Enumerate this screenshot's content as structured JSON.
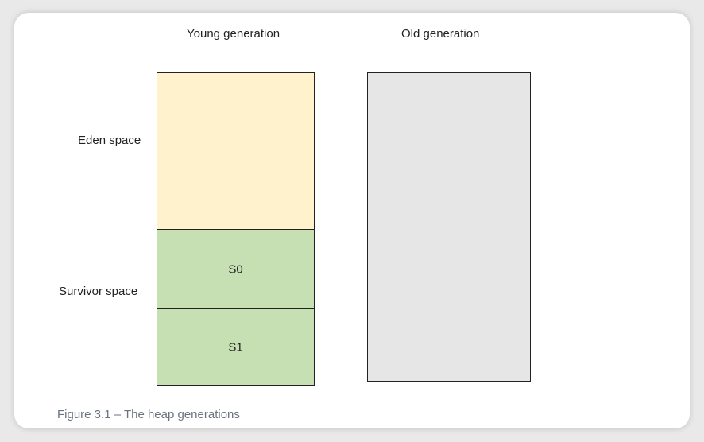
{
  "columns": {
    "young_title": "Young generation",
    "old_title": "Old generation"
  },
  "labels": {
    "eden": "Eden space",
    "survivor": "Survivor space"
  },
  "regions": {
    "s0": "S0",
    "s1": "S1"
  },
  "colors": {
    "eden_fill": "#fff2cc",
    "survivor_fill": "#c6e0b4",
    "old_fill": "#e6e6e6",
    "border": "#222222"
  },
  "caption": "Figure 3.1 – The heap generations"
}
